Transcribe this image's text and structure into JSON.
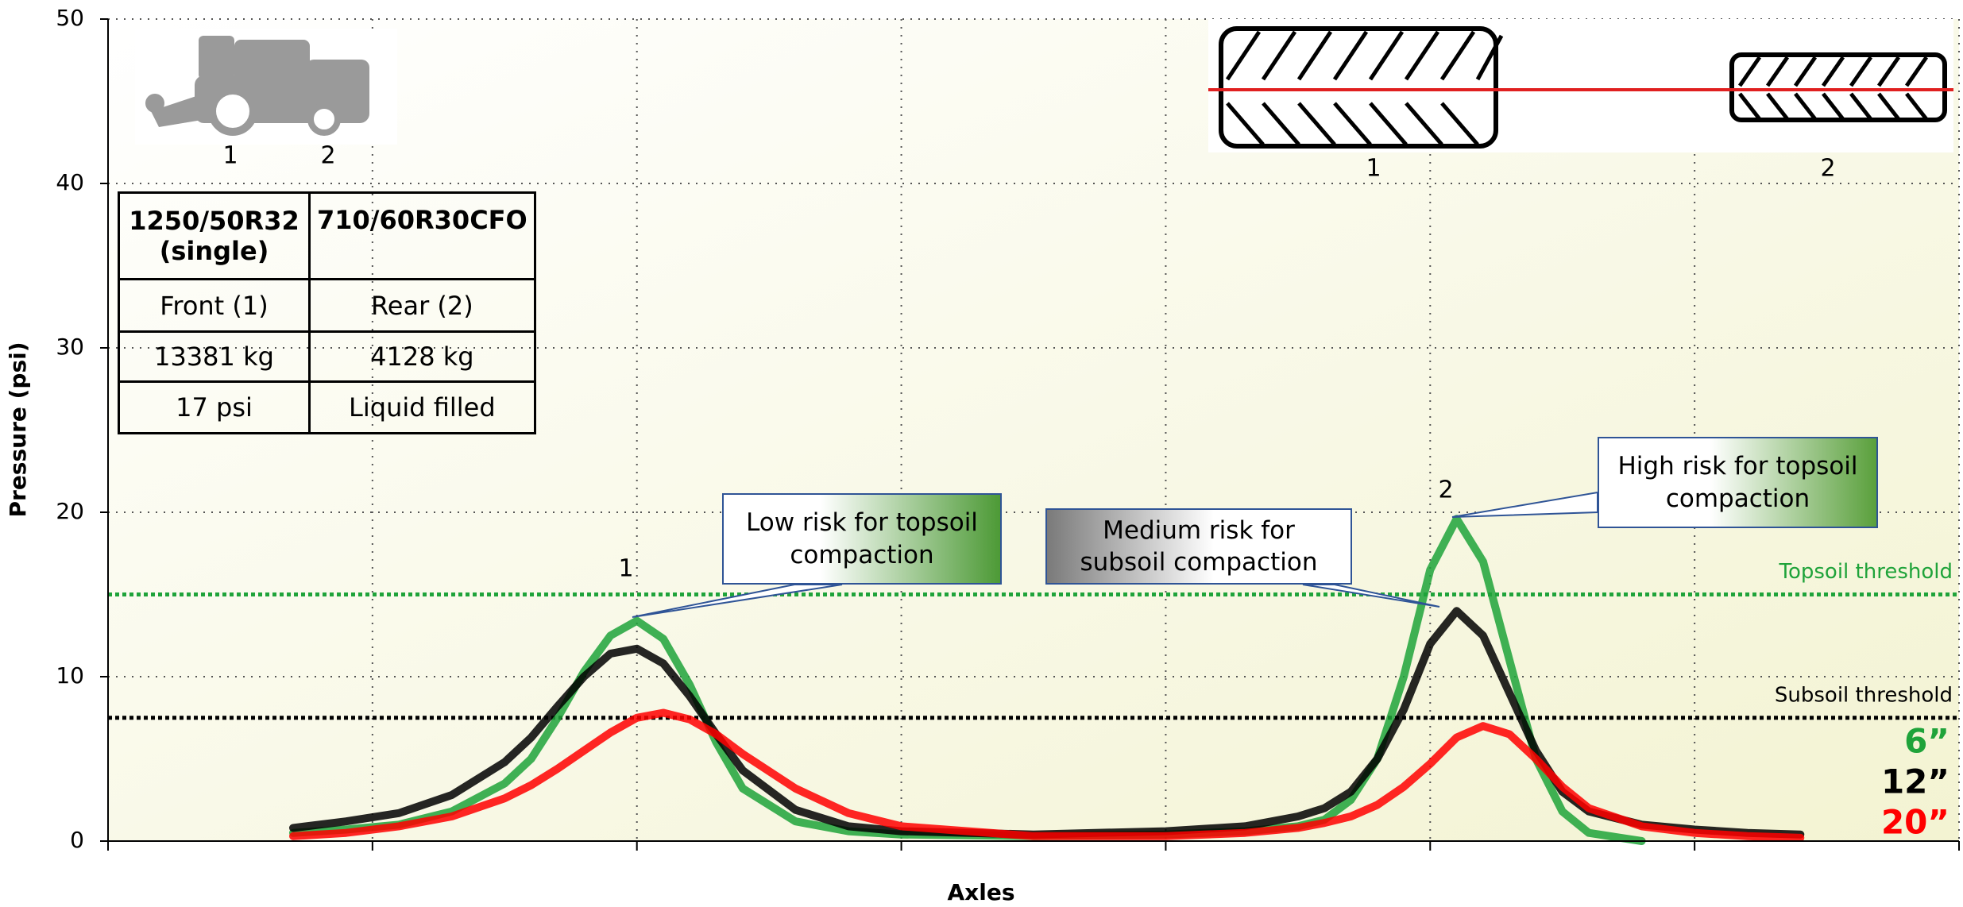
{
  "chart_data": {
    "type": "line",
    "x_label": "Axles",
    "y_label": "Pressure (psi)",
    "x": [
      0.7,
      0.9,
      1.1,
      1.3,
      1.5,
      1.6,
      1.7,
      1.8,
      1.9,
      2.0,
      2.1,
      2.2,
      2.3,
      2.4,
      2.6,
      2.8,
      3.0,
      3.5,
      4.0,
      4.3,
      4.5,
      4.6,
      4.7,
      4.8,
      4.9,
      5.0,
      5.1,
      5.2,
      5.3,
      5.4,
      5.5,
      5.6,
      5.8,
      6.0,
      6.2,
      6.4
    ],
    "xlim": [
      0,
      7
    ],
    "xticks": [
      0,
      1,
      2,
      3,
      4,
      5,
      6,
      7
    ],
    "ylim": [
      0,
      50
    ],
    "yticks": [
      0,
      10,
      20,
      30,
      40,
      50
    ],
    "grid": true,
    "legend": "lower right",
    "series": [
      {
        "name": "6”",
        "color": "#1fa33a",
        "values": [
          0.5,
          0.7,
          1.0,
          1.8,
          3.5,
          5.0,
          7.5,
          10.3,
          12.5,
          13.4,
          12.3,
          9.5,
          6.0,
          3.2,
          1.2,
          0.6,
          0.4,
          0.3,
          0.4,
          0.6,
          0.9,
          1.3,
          2.5,
          5.0,
          10.0,
          16.5,
          19.6,
          17.0,
          11.0,
          5.0,
          1.8,
          0.5,
          0,
          null,
          null,
          null
        ]
      },
      {
        "name": "12”",
        "color": "#000000",
        "values": [
          0.8,
          1.2,
          1.7,
          2.8,
          4.8,
          6.3,
          8.2,
          10.0,
          11.4,
          11.7,
          10.8,
          8.8,
          6.5,
          4.3,
          1.9,
          0.9,
          0.6,
          0.4,
          0.6,
          0.9,
          1.5,
          2.0,
          3.0,
          5.0,
          8.0,
          12.0,
          14.0,
          12.5,
          9.0,
          5.5,
          3.0,
          1.8,
          1.0,
          0.7,
          0.5,
          0.4
        ]
      },
      {
        "name": "20”",
        "color": "#ff0000",
        "values": [
          0.3,
          0.5,
          0.9,
          1.5,
          2.6,
          3.4,
          4.4,
          5.5,
          6.6,
          7.5,
          7.8,
          7.4,
          6.5,
          5.3,
          3.2,
          1.7,
          0.9,
          0.3,
          0.3,
          0.5,
          0.8,
          1.1,
          1.5,
          2.2,
          3.3,
          4.7,
          6.3,
          7.0,
          6.5,
          5.0,
          3.3,
          2.0,
          0.9,
          0.5,
          0.3,
          0.2
        ]
      }
    ],
    "thresholds": [
      {
        "label": "Topsoil threshold",
        "value": 15,
        "color": "#1fa33a"
      },
      {
        "label": "Subsoil threshold",
        "value": 7.5,
        "color": "#000000"
      }
    ],
    "annotations": [
      "1",
      "2",
      "Low risk for topsoil compaction",
      "Medium risk for subsoil compaction",
      "High risk for topsoil compaction"
    ]
  },
  "machine_labels": [
    "1",
    "2"
  ],
  "tire_labels": [
    "1",
    "2"
  ],
  "table": {
    "rows": [
      [
        "1250/50R32 (single)",
        "710/60R30CFO"
      ],
      [
        "Front (1)",
        "Rear (2)"
      ],
      [
        "13381 kg",
        "4128 kg"
      ],
      [
        "17 psi",
        "Liquid filled"
      ]
    ]
  }
}
